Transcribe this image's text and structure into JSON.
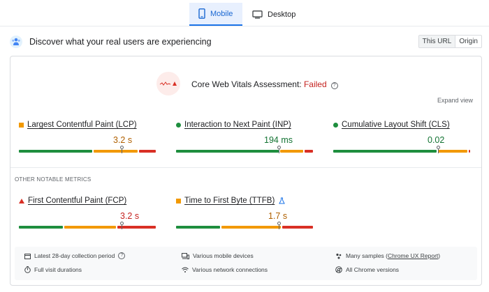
{
  "tabs": [
    {
      "label": "Mobile",
      "icon": "phone-icon",
      "active": true
    },
    {
      "label": "Desktop",
      "icon": "monitor-icon",
      "active": false
    }
  ],
  "header": {
    "title": "Discover what your real users are experiencing",
    "toggle": {
      "this_url": "This URL",
      "origin": "Origin"
    }
  },
  "assessment": {
    "prefix": "Core Web Vitals Assessment: ",
    "status": "Failed",
    "expand_label": "Expand view"
  },
  "metrics": [
    {
      "name": "Largest Contentful Paint (LCP)",
      "value": "3.2 s",
      "status": "needs-improvement",
      "bar": {
        "good": 0.54,
        "needs_improvement": 0.33,
        "poor": 0.13
      },
      "marker": 0.74
    },
    {
      "name": "Interaction to Next Paint (INP)",
      "value": "194 ms",
      "status": "good",
      "bar": {
        "good": 0.75,
        "needs_improvement": 0.18,
        "poor": 0.07
      },
      "marker": 0.74
    },
    {
      "name": "Cumulative Layout Shift (CLS)",
      "value": "0.02",
      "status": "good",
      "bar": {
        "good": 0.76,
        "needs_improvement": 0.22,
        "poor": 0.02
      },
      "marker": 0.76
    }
  ],
  "other_section_label": "OTHER NOTABLE METRICS",
  "other_metrics": [
    {
      "name": "First Contentful Paint (FCP)",
      "value": "3.2 s",
      "status": "poor",
      "bar": {
        "good": 0.33,
        "needs_improvement": 0.38,
        "poor": 0.29
      },
      "marker": 0.74
    },
    {
      "name": "Time to First Byte (TTFB)",
      "value": "1.7 s",
      "status": "needs-improvement",
      "experimental_icon": "beaker-icon",
      "bar": {
        "good": 0.33,
        "needs_improvement": 0.44,
        "poor": 0.23
      },
      "marker": 0.74
    }
  ],
  "footer": {
    "collection_period": "Latest 28-day collection period",
    "devices": "Various mobile devices",
    "samples_prefix": "Many samples (",
    "samples_link": "Chrome UX Report",
    "samples_suffix": ")",
    "durations": "Full visit durations",
    "network": "Various network connections",
    "versions": "All Chrome versions"
  },
  "colors": {
    "good": "#1e8e3e",
    "needs_improvement": "#f29900",
    "poor": "#d93025",
    "accent": "#1a73e8"
  }
}
